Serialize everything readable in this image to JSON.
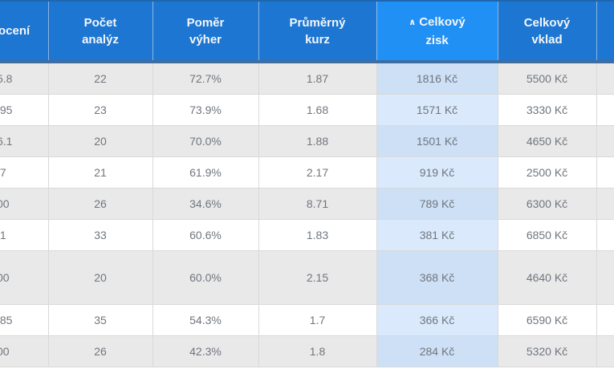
{
  "table": {
    "sort_icon": "∧",
    "currency_suffix": "Kč",
    "headers": [
      {
        "id": "rating",
        "label": "ocení",
        "sorted": false
      },
      {
        "id": "analyses",
        "label": "Počet\nanalýz",
        "sorted": false
      },
      {
        "id": "winratio",
        "label": "Poměr\nvýher",
        "sorted": false
      },
      {
        "id": "avgodds",
        "label": "Průměrný\nkurz",
        "sorted": false
      },
      {
        "id": "profit",
        "label": "Celkový\nzisk",
        "sorted": true
      },
      {
        "id": "stake",
        "label": "Celkový\nvklad",
        "sorted": false
      },
      {
        "id": "cutoff",
        "label": "",
        "sorted": false
      }
    ],
    "rows": [
      {
        "rating_fragment": "5.8",
        "analyses": "22",
        "win_ratio": "72.7%",
        "avg_odds": "1.87",
        "total_profit": "1816 Kč",
        "total_stake": "5500 Kč"
      },
      {
        "rating_fragment": ".95",
        "analyses": "23",
        "win_ratio": "73.9%",
        "avg_odds": "1.68",
        "total_profit": "1571 Kč",
        "total_stake": "3330 Kč"
      },
      {
        "rating_fragment": "6.1",
        "analyses": "20",
        "win_ratio": "70.0%",
        "avg_odds": "1.88",
        "total_profit": "1501 Kč",
        "total_stake": "4650 Kč"
      },
      {
        "rating_fragment": ".7",
        "analyses": "21",
        "win_ratio": "61.9%",
        "avg_odds": "2.17",
        "total_profit": "919 Kč",
        "total_stake": "2500 Kč"
      },
      {
        "rating_fragment": "00",
        "analyses": "26",
        "win_ratio": "34.6%",
        "avg_odds": "8.71",
        "total_profit": "789 Kč",
        "total_stake": "6300 Kč"
      },
      {
        "rating_fragment": ".1",
        "analyses": "33",
        "win_ratio": "60.6%",
        "avg_odds": "1.83",
        "total_profit": "381 Kč",
        "total_stake": "6850 Kč"
      },
      {
        "rating_fragment": "00",
        "analyses": "20",
        "win_ratio": "60.0%",
        "avg_odds": "2.15",
        "total_profit": "368 Kč",
        "total_stake": "4640 Kč"
      },
      {
        "rating_fragment": ".85",
        "analyses": "35",
        "win_ratio": "54.3%",
        "avg_odds": "1.7",
        "total_profit": "366 Kč",
        "total_stake": "6590 Kč"
      },
      {
        "rating_fragment": "00",
        "analyses": "26",
        "win_ratio": "42.3%",
        "avg_odds": "1.8",
        "total_profit": "284 Kč",
        "total_stake": "5320 Kč"
      }
    ],
    "colors": {
      "header_bg": "#1d76d2",
      "header_sorted_bg": "#2190f5",
      "header_underline": "#3e6da1",
      "header_text": "#f4f6f8",
      "row_stripe_bg": "#e9e9e9",
      "profit_col_bg_white_row": "#daeafc",
      "profit_col_bg_stripe_row": "#cde0f6",
      "cell_text": "#70767e",
      "cell_border": "#d9d9d9"
    }
  }
}
